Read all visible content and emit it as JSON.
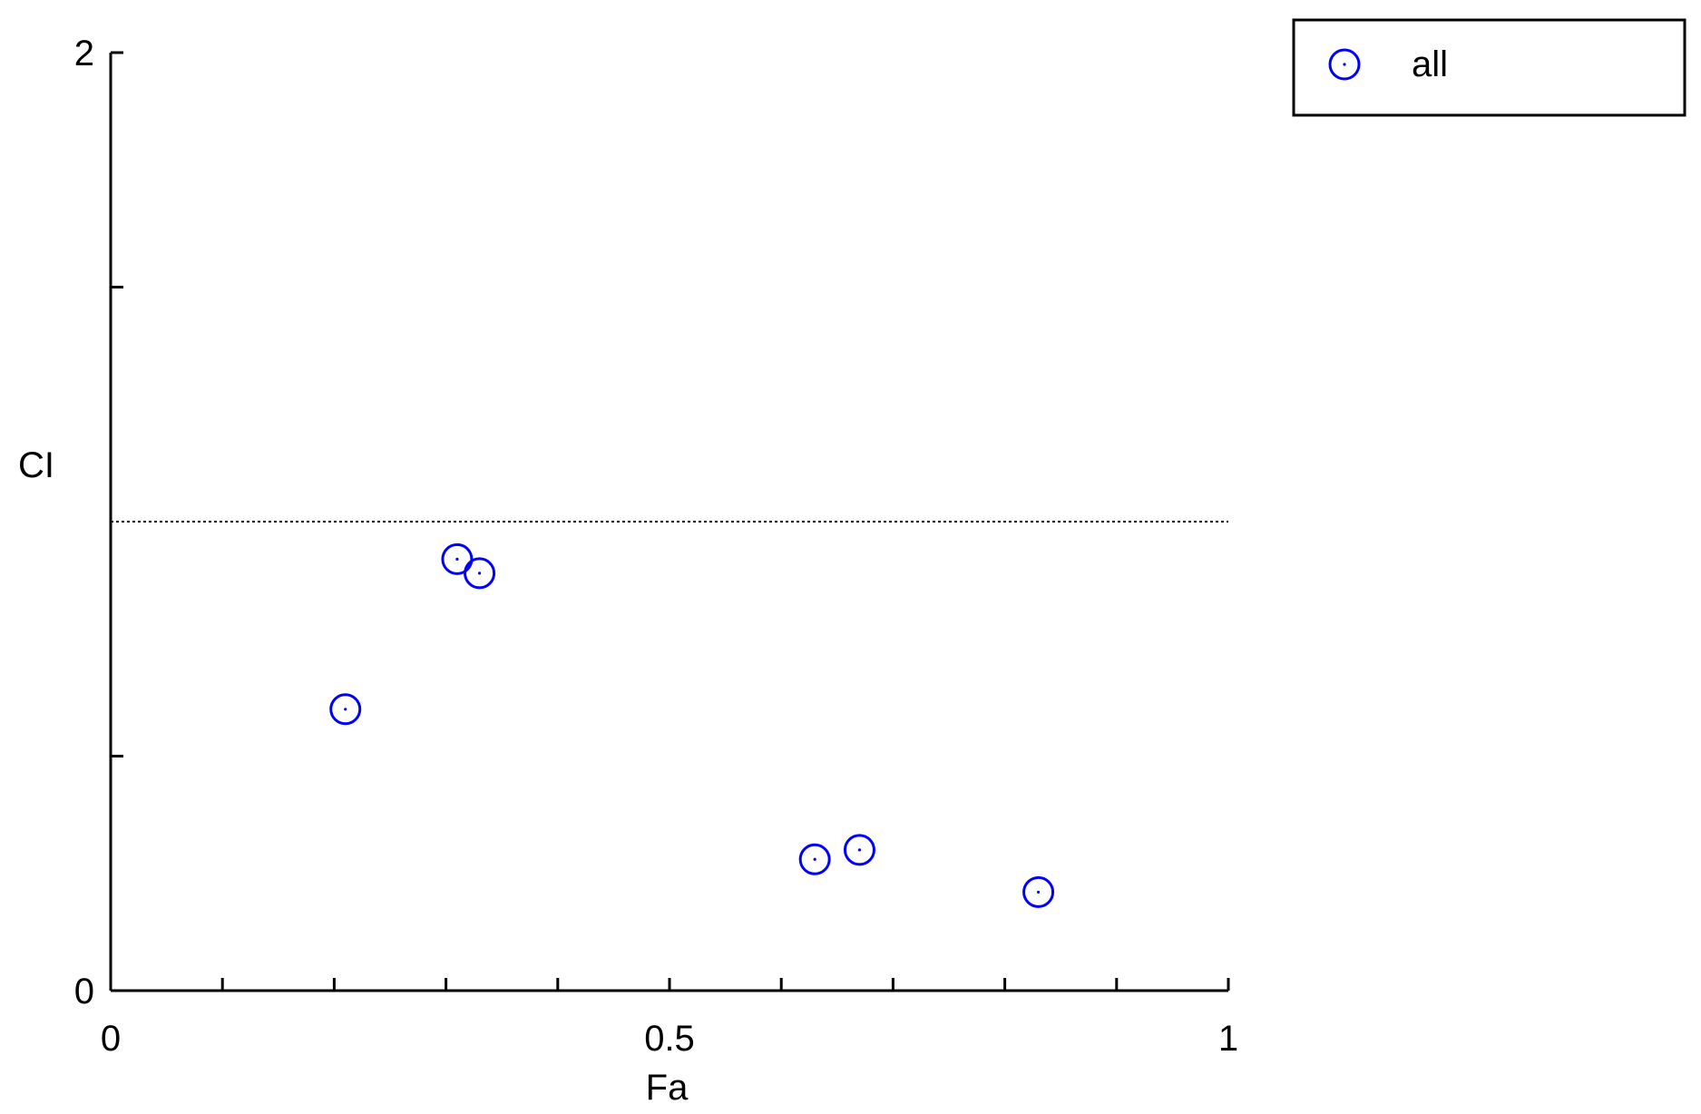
{
  "chart_data": {
    "type": "scatter",
    "xlabel": "Fa",
    "ylabel": "CI",
    "xlim": [
      0,
      1
    ],
    "ylim": [
      0,
      2
    ],
    "x_tick_labels": [
      {
        "value": 0,
        "label": "0"
      },
      {
        "value": 0.5,
        "label": "0.5"
      },
      {
        "value": 1,
        "label": "1"
      }
    ],
    "y_tick_labels": [
      {
        "value": 0,
        "label": "0"
      },
      {
        "value": 2,
        "label": "2"
      }
    ],
    "x_minor_ticks": [
      0.1,
      0.2,
      0.3,
      0.4,
      0.6,
      0.7,
      0.8,
      0.9
    ],
    "y_minor_ticks": [
      0.5,
      1.5
    ],
    "reference_line": {
      "y": 1.0,
      "style": "dotted"
    },
    "marker": "circle",
    "marker_color": "#0000ff",
    "legend": {
      "placement": "outside-top-right",
      "entries": [
        "all"
      ]
    },
    "series": [
      {
        "name": "all",
        "points": [
          {
            "x": 0.21,
            "y": 0.6
          },
          {
            "x": 0.31,
            "y": 0.92
          },
          {
            "x": 0.33,
            "y": 0.89
          },
          {
            "x": 0.63,
            "y": 0.28
          },
          {
            "x": 0.67,
            "y": 0.3
          },
          {
            "x": 0.83,
            "y": 0.21
          }
        ]
      }
    ],
    "grid": false
  }
}
